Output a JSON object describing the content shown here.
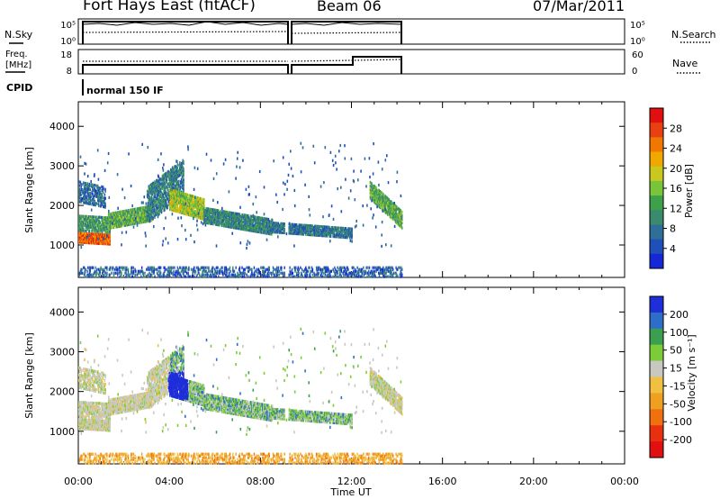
{
  "header": {
    "title": "Fort Hays East (fitACF)",
    "beam": "Beam 06",
    "date": "07/Mar/2011"
  },
  "strip_labels": {
    "nsky": "N.Sky",
    "freq_line1": "Freq.",
    "freq_line2": "[MHz]",
    "cpid": "CPID",
    "nsearch": "N.Search",
    "nave": "Nave",
    "noise_tick_top": "10^5",
    "noise_tick_bottom": "10^0",
    "freq_tick_top": "18",
    "freq_tick_bottom": "8",
    "nave_tick_top": "60",
    "nave_tick_bottom": "0",
    "cpid_text": "normal 150 IF"
  },
  "chart_data": [
    {
      "type": "heatmap",
      "name": "power-panel",
      "ylabel": "Slant Range [km]",
      "ylim": [
        180,
        4620
      ],
      "yticks": [
        "1000",
        "2000",
        "3000",
        "4000"
      ],
      "xlim_hours": [
        0,
        24
      ],
      "colorbar": {
        "label": "Power [dB]",
        "ticks": [
          "4",
          "8",
          "12",
          "16",
          "20",
          "24",
          "28"
        ],
        "colors": [
          "#1428d8",
          "#1f4fb8",
          "#2f6e98",
          "#3a8a6e",
          "#3fa04a",
          "#7ac43a",
          "#c8c81e",
          "#f0a800",
          "#f07800",
          "#e84010",
          "#e01010"
        ]
      }
    },
    {
      "type": "heatmap",
      "name": "velocity-panel",
      "ylabel": "Slant Range [km]",
      "ylim": [
        180,
        4620
      ],
      "yticks": [
        "1000",
        "2000",
        "3000",
        "4000"
      ],
      "xlim_hours": [
        0,
        24
      ],
      "colorbar": {
        "label": "Velocity [m s^-1]",
        "ticks": [
          "200",
          "100",
          "50",
          "15",
          "-15",
          "-50",
          "-100",
          "-200"
        ],
        "colors": [
          "#1e2ed8",
          "#2e6ec8",
          "#3aa050",
          "#7ccc3a",
          "#c8c8c0",
          "#f0c040",
          "#f0a020",
          "#f07010",
          "#e83010",
          "#e01010"
        ]
      }
    }
  ],
  "xaxis": {
    "label": "Time UT",
    "ticks": [
      "00:00",
      "04:00",
      "08:00",
      "12:00",
      "16:00",
      "20:00",
      "00:00"
    ]
  }
}
